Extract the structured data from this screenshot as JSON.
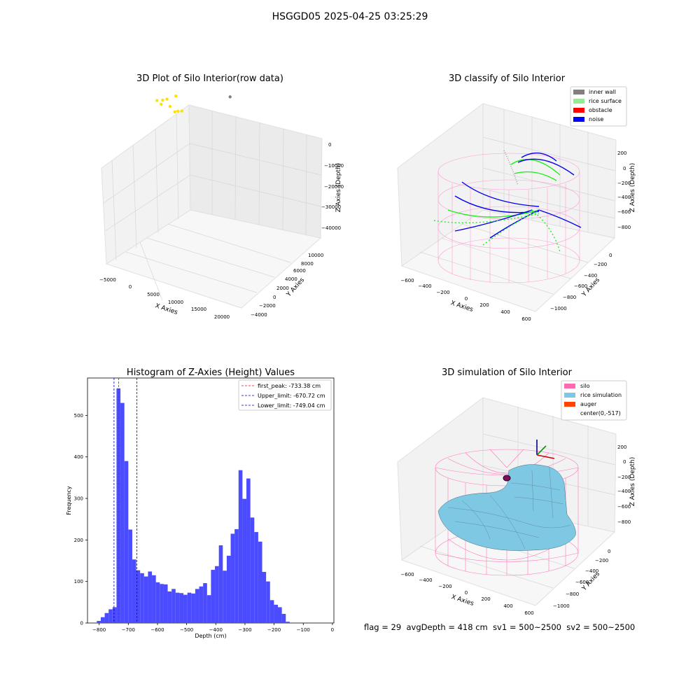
{
  "suptitle": "HSGGD05 2025-04-25 03:25:29",
  "footer": {
    "flag": "flag = 29",
    "avg_depth": "avgDepth = 418 cm",
    "sv1": "sv1 = 500~2500",
    "sv2": "sv2 = 500~2500"
  },
  "colors": {
    "histogram_bar": "#4b4bff",
    "first_peak_line": "#ff0000",
    "limit_line": "#0000cc",
    "raw_points": "#ffe200",
    "inner_wall": "#808080",
    "rice_surface": "#90ee90",
    "obstacle": "#ff0000",
    "noise": "#0000ff",
    "silo": "#ff69b4",
    "rice_simulation": "#7ec8e3",
    "auger": "#ff4500"
  },
  "chart_data": [
    {
      "type": "scatter",
      "projection": "3d",
      "title": "3D Plot of Silo Interior(row data)",
      "xlabel": "X Axies",
      "ylabel": "Y Axies",
      "zlabel": "Z Axies (Depth)",
      "x_ticks": [
        "−5000",
        "0",
        "5000",
        "10000",
        "15000",
        "20000"
      ],
      "y_ticks": [
        "−4000",
        "−2000",
        "0",
        "2000",
        "4000",
        "6000",
        "8000",
        "10000"
      ],
      "z_ticks": [
        "0",
        "−10000",
        "−20000",
        "−30000",
        "−40000"
      ],
      "series": [
        {
          "color": "#ffe200",
          "points": [
            [
              -4800,
              8000,
              -1500
            ],
            [
              -4000,
              8500,
              -1200
            ],
            [
              -3500,
              9000,
              -1000
            ],
            [
              -1500,
              7500,
              -2000
            ],
            [
              0,
              7000,
              -1500
            ],
            [
              500,
              7200,
              -1800
            ],
            [
              1000,
              7600,
              -1400
            ],
            [
              -2000,
              9500,
              -2500
            ],
            [
              -3000,
              7000,
              -3000
            ]
          ]
        },
        {
          "color": "#808080",
          "points": [
            [
              21000,
              -3000,
              -44000
            ]
          ]
        }
      ]
    },
    {
      "type": "scatter",
      "projection": "3d",
      "title": "3D classify of Silo Interior",
      "xlabel": "X Axies",
      "ylabel": "Y Axies",
      "zlabel": "Z Axies (Depth)",
      "x_ticks": [
        "−600",
        "−400",
        "−200",
        "0",
        "200",
        "400",
        "600"
      ],
      "y_ticks": [
        "−1000",
        "−800",
        "−600",
        "−400",
        "−200",
        "0"
      ],
      "z_ticks": [
        "200",
        "0",
        "−200",
        "−400",
        "−600",
        "−800"
      ],
      "legend": [
        "inner wall",
        "rice surface",
        "obstacle",
        "noise"
      ],
      "legend_position": "top-right"
    },
    {
      "type": "bar",
      "title": "Histogram of Z-Axies (Height) Values",
      "xlabel": "Depth (cm)",
      "ylabel": "Frequency",
      "xlim": [
        -840,
        5
      ],
      "ylim": [
        0,
        590
      ],
      "x_ticks": [
        -800,
        -700,
        -600,
        -500,
        -400,
        -300,
        -200,
        -100,
        0
      ],
      "x_tick_labels": [
        "−800",
        "−700",
        "−600",
        "−500",
        "−400",
        "−300",
        "−200",
        "−100",
        "0"
      ],
      "y_ticks": [
        0,
        100,
        200,
        300,
        400,
        500
      ],
      "y_tick_labels": [
        "0",
        "100",
        "200",
        "300",
        "400",
        "500"
      ],
      "bin_start": -808,
      "bin_width": 13.5,
      "values": [
        5,
        14,
        24,
        33,
        38,
        565,
        530,
        390,
        225,
        153,
        127,
        120,
        112,
        124,
        115,
        98,
        94,
        93,
        76,
        82,
        73,
        72,
        68,
        73,
        71,
        82,
        88,
        96,
        67,
        128,
        137,
        187,
        126,
        162,
        215,
        226,
        368,
        299,
        348,
        254,
        219,
        196,
        123,
        100,
        55,
        44,
        38,
        22,
        3
      ],
      "lines": [
        {
          "label": "first_peak: -733.38 cm",
          "x": -733.38,
          "color": "#ff0000"
        },
        {
          "label": "Upper_limit: -670.72 cm",
          "x": -670.72,
          "color": "#0000cc"
        },
        {
          "label": "Lower_limit: -749.04 cm",
          "x": -749.04,
          "color": "#0000cc"
        }
      ],
      "legend_position": "top-right"
    },
    {
      "type": "surface",
      "projection": "3d",
      "title": "3D simulation of Silo Interior",
      "xlabel": "X Axies",
      "ylabel": "Y Axies",
      "zlabel": "Z Axies (Depth)",
      "x_ticks": [
        "−600",
        "−400",
        "−200",
        "0",
        "200",
        "400",
        "600"
      ],
      "y_ticks": [
        "−1000",
        "−800",
        "−600",
        "−400",
        "−200",
        "0"
      ],
      "z_ticks": [
        "200",
        "0",
        "−200",
        "−400",
        "−600",
        "−800"
      ],
      "legend": [
        "silo",
        "rice simulation",
        "auger",
        "center(0,-517)"
      ],
      "legend_position": "top-right"
    }
  ]
}
